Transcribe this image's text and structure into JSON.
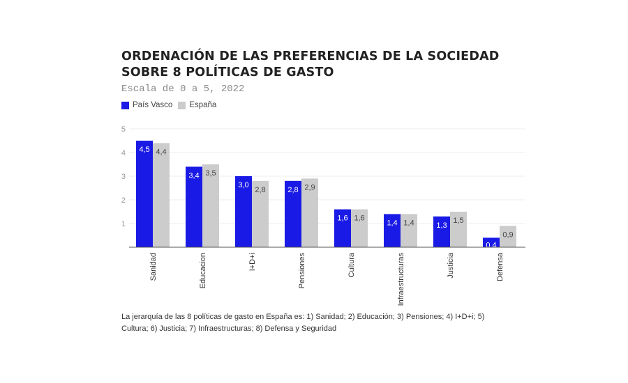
{
  "chart_data": {
    "type": "bar",
    "title": "ORDENACIÓN DE LAS PREFERENCIAS DE LA SOCIEDAD SOBRE 8 POLÍTICAS DE GASTO",
    "subtitle": "Escala de 0 a 5, 2022",
    "xlabel": "",
    "ylabel": "",
    "ylim": [
      0,
      5
    ],
    "yticks": [
      "1",
      "2",
      "3",
      "4",
      "5"
    ],
    "grid": true,
    "legend_position": "top-left",
    "categories": [
      "Sanidad",
      "Educacion",
      "I+D+i",
      "Pensiones",
      "Cultura",
      "Infraestructuras",
      "Justicia",
      "Defensa"
    ],
    "series": [
      {
        "name": "País Vasco",
        "color": "#1a1ae6",
        "values": [
          4.5,
          3.4,
          3.0,
          2.8,
          1.6,
          1.4,
          1.3,
          0.4
        ],
        "labels": [
          "4,5",
          "3,4",
          "3,0",
          "2,8",
          "1,6",
          "1,4",
          "1,3",
          "0,4"
        ]
      },
      {
        "name": "España",
        "color": "#cccccc",
        "values": [
          4.4,
          3.5,
          2.8,
          2.9,
          1.6,
          1.4,
          1.5,
          0.9
        ],
        "labels": [
          "4,4",
          "3,5",
          "2,8",
          "2,9",
          "1,6",
          "1,4",
          "1,5",
          "0,9"
        ]
      }
    ]
  },
  "footnote": "La jerarquía de las 8 políticas de gasto en España es: 1) Sanidad; 2) Educación; 3) Pensiones; 4) I+D+i; 5) Cultura; 6) Justicia; 7) Infraestructuras; 8) Defensa y Seguridad"
}
